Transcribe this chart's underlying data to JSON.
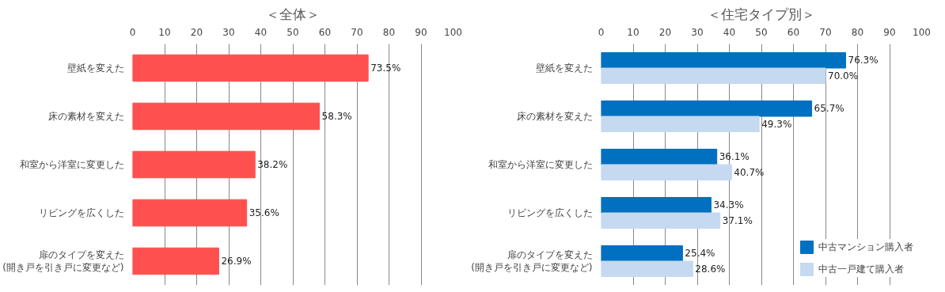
{
  "chart_data": [
    {
      "type": "bar",
      "title": "＜全体＞",
      "orientation": "horizontal",
      "categories": [
        "壁紙を変えた",
        "床の素材を変えた",
        "和室から洋室に変更した",
        "リビングを広くした",
        "扉のタイプを変えた\n(開き戸を引き戸に変更など)"
      ],
      "series": [
        {
          "color": "#ff5050",
          "values": [
            73.5,
            58.3,
            38.2,
            35.6,
            26.9
          ],
          "value_labels": [
            "73.5%",
            "58.3%",
            "38.2%",
            "35.6%",
            "26.9%"
          ]
        }
      ],
      "xlim": [
        0,
        100
      ],
      "xticks": [
        0,
        10,
        20,
        30,
        40,
        50,
        60,
        70,
        80,
        90,
        100
      ],
      "grid": "x",
      "legend": false
    },
    {
      "type": "bar",
      "title": "＜住宅タイプ別＞",
      "orientation": "horizontal",
      "categories": [
        "壁紙を変えた",
        "床の素材を変えた",
        "和室から洋室に変更した",
        "リビングを広くした",
        "扉のタイプを変えた\n(開き戸を引き戸に変更など)"
      ],
      "series": [
        {
          "name": "中古マンション購入者",
          "color": "#0070c0",
          "values": [
            76.3,
            65.7,
            36.1,
            34.3,
            25.4
          ],
          "value_labels": [
            "76.3%",
            "65.7%",
            "36.1%",
            "34.3%",
            "25.4%"
          ]
        },
        {
          "name": "中古一戸建て購入者",
          "color": "#c5d9f1",
          "values": [
            70.0,
            49.3,
            40.7,
            37.1,
            28.6
          ],
          "value_labels": [
            "70.0%",
            "49.3%",
            "40.7%",
            "37.1%",
            "28.6%"
          ]
        }
      ],
      "xlim": [
        0,
        100
      ],
      "xticks": [
        0,
        10,
        20,
        30,
        40,
        50,
        60,
        70,
        80,
        90,
        100
      ],
      "grid": "x",
      "legend": "bottom right"
    }
  ]
}
